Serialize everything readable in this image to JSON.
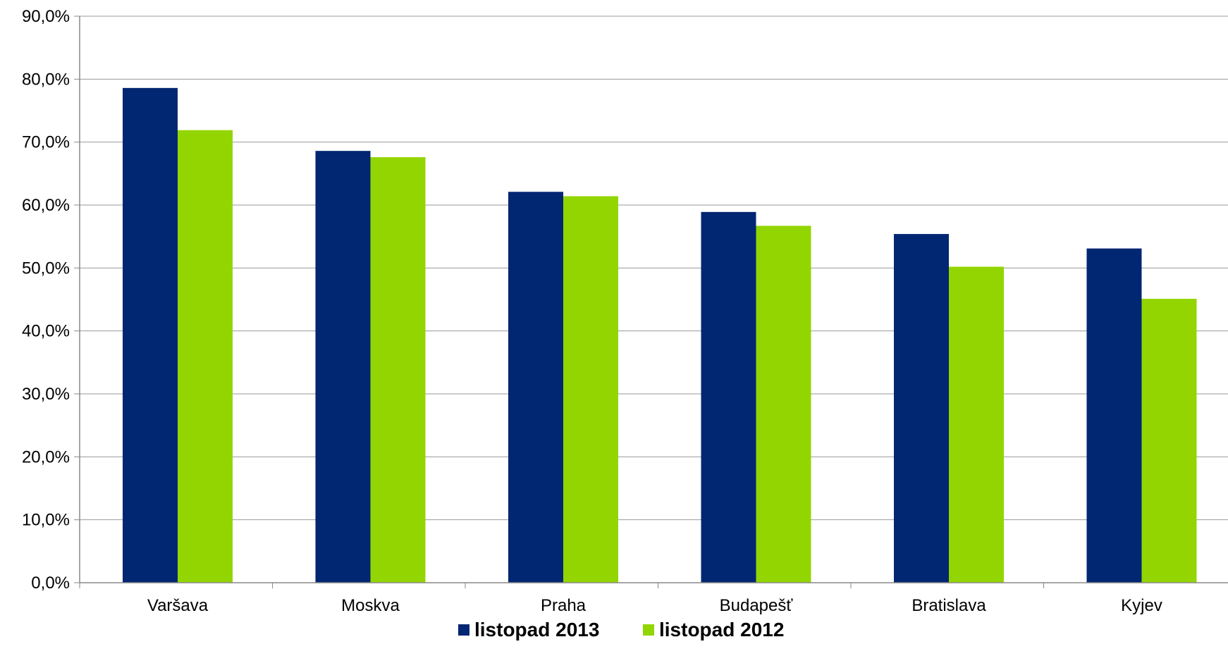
{
  "chart_data": {
    "type": "bar",
    "title": "",
    "xlabel": "",
    "ylabel": "",
    "categories": [
      "Varšava",
      "Moskva",
      "Praha",
      "Budapešť",
      "Bratislava",
      "Kyjev"
    ],
    "series": [
      {
        "name": "listopad 2013",
        "color": "#012672",
        "values": [
          78.6,
          68.6,
          62.1,
          58.9,
          55.4,
          53.1
        ]
      },
      {
        "name": "listopad 2012",
        "color": "#93D500",
        "values": [
          71.9,
          67.6,
          61.4,
          56.7,
          50.2,
          45.1
        ]
      }
    ],
    "ylim": [
      0,
      90
    ],
    "yticks": [
      0,
      10,
      20,
      30,
      40,
      50,
      60,
      70,
      80,
      90
    ],
    "ytick_labels": [
      "0,0%",
      "10,0%",
      "20,0%",
      "30,0%",
      "40,0%",
      "50,0%",
      "60,0%",
      "70,0%",
      "80,0%",
      "90,0%"
    ],
    "grid": true,
    "legend_position": "bottom-center",
    "colors": {
      "grid": "#999999",
      "axis": "#888888"
    }
  }
}
